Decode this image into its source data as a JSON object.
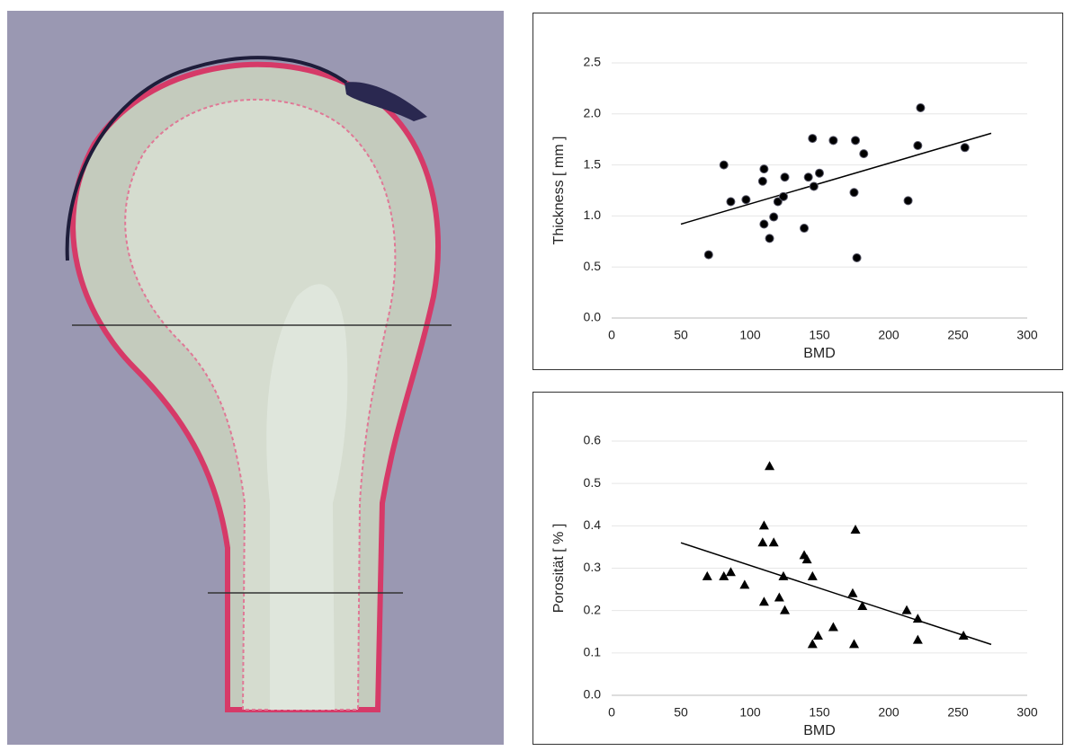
{
  "chart_data": [
    {
      "type": "scatter",
      "marker": "circle",
      "color": "#000000",
      "x_label": "BMD",
      "y_label": "Thickness [ mm ]",
      "x": [
        70,
        81,
        86,
        97,
        110,
        109,
        110,
        114,
        117,
        120,
        124,
        125,
        139,
        142,
        145,
        146,
        150,
        160,
        175,
        176,
        177,
        182,
        214,
        221,
        223,
        255
      ],
      "values": [
        0.62,
        1.5,
        1.14,
        1.16,
        1.46,
        1.34,
        0.92,
        0.78,
        0.99,
        1.14,
        1.19,
        1.38,
        0.88,
        1.38,
        1.76,
        1.29,
        1.42,
        1.74,
        1.23,
        1.74,
        0.59,
        1.61,
        1.15,
        1.69,
        2.06,
        1.67
      ],
      "trendline": {
        "x": [
          50,
          274
        ],
        "y": [
          0.92,
          1.81
        ]
      },
      "xlim": [
        0,
        300
      ],
      "xticks": [
        0,
        50,
        100,
        150,
        200,
        250,
        300
      ],
      "ylim": [
        0,
        2.5
      ],
      "yticks": [
        {
          "value": 0,
          "label": "0.0"
        },
        0.5,
        {
          "value": 1,
          "label": "1.0"
        },
        1.5,
        {
          "value": 2,
          "label": "2.0"
        },
        2.5
      ],
      "grid": true
    },
    {
      "type": "scatter",
      "marker": "triangle",
      "color": "#000000",
      "x_label": "BMD",
      "y_label": "Porosität [ % ]",
      "x": [
        69,
        81,
        86,
        96,
        110,
        109,
        110,
        114,
        117,
        121,
        124,
        125,
        139,
        141,
        145,
        145,
        149,
        160,
        174,
        176,
        175,
        181,
        213,
        221,
        221,
        254
      ],
      "values": [
        0.28,
        0.28,
        0.29,
        0.26,
        0.4,
        0.36,
        0.22,
        0.54,
        0.36,
        0.23,
        0.28,
        0.2,
        0.33,
        0.32,
        0.28,
        0.12,
        0.14,
        0.16,
        0.24,
        0.39,
        0.12,
        0.21,
        0.2,
        0.18,
        0.13,
        0.14
      ],
      "trendline": {
        "x": [
          50,
          274
        ],
        "y": [
          0.36,
          0.12
        ]
      },
      "xlim": [
        0,
        300
      ],
      "xticks": [
        0,
        50,
        100,
        150,
        200,
        250,
        300
      ],
      "ylim": [
        0,
        0.6
      ],
      "yticks": [
        {
          "value": 0,
          "label": "0.0"
        },
        0.1,
        0.2,
        0.3,
        0.4,
        0.5,
        0.6
      ],
      "grid": true
    }
  ]
}
